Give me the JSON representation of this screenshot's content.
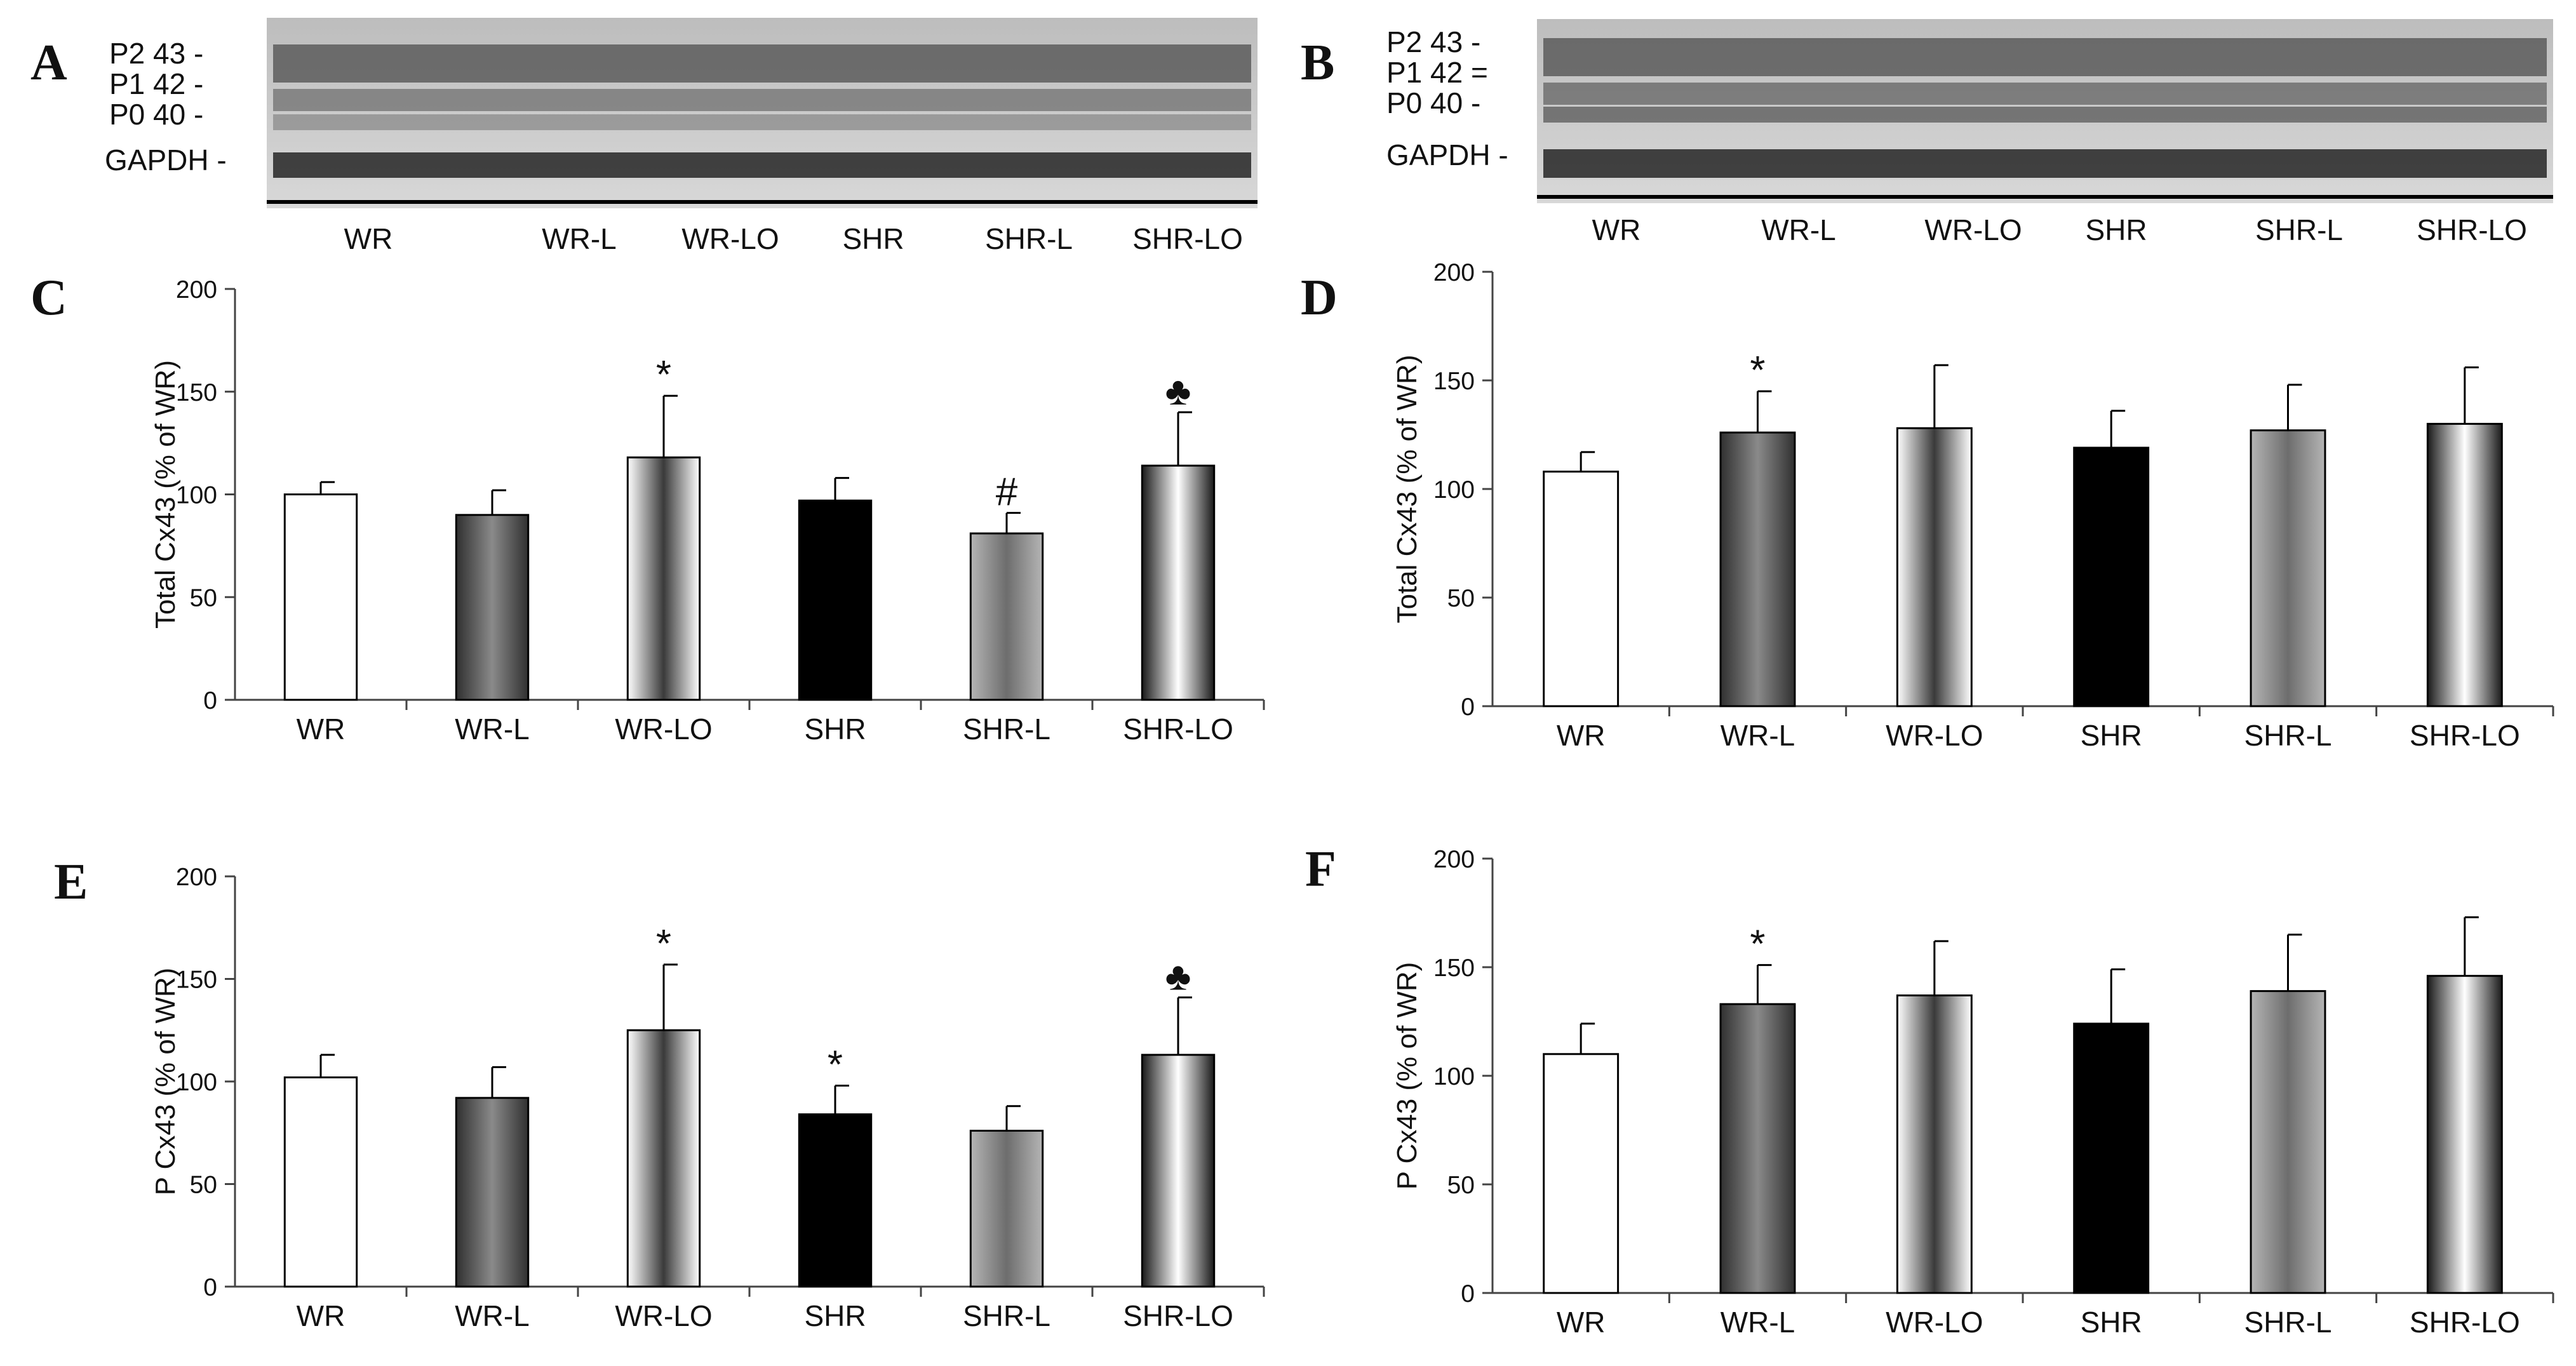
{
  "panels": {
    "A": {
      "label": "A"
    },
    "B": {
      "label": "B"
    }
  },
  "blots": [
    {
      "panel": "A",
      "band_labels": [
        "P2 43 -",
        "P1 42 -",
        "P0 40 -"
      ],
      "loading_label": "GAPDH -",
      "lane_groups": [
        "WR",
        "WR-L",
        "WR-LO",
        "SHR",
        "SHR-L",
        "SHR-LO"
      ]
    },
    {
      "panel": "B",
      "band_labels": [
        "P2 43 -",
        "P1 42 =",
        "P0 40 -"
      ],
      "loading_label": "GAPDH -",
      "lane_groups": [
        "WR",
        "WR-L",
        "WR-LO",
        "SHR",
        "SHR-L",
        "SHR-LO"
      ]
    }
  ],
  "chart_data": [
    {
      "panel": "C",
      "type": "bar",
      "title": "",
      "categories": [
        "WR",
        "WR-L",
        "WR-LO",
        "SHR",
        "SHR-L",
        "SHR-LO"
      ],
      "values": [
        100,
        90,
        118,
        97,
        81,
        114
      ],
      "errors": [
        6,
        12,
        30,
        11,
        10,
        26
      ],
      "annotations": [
        "",
        "",
        "*",
        "",
        "#",
        "♣"
      ],
      "xlabel": "",
      "ylabel": "Total Cx43 (% of WR)",
      "ylim": [
        0,
        200
      ],
      "yticks": [
        0,
        50,
        100,
        150,
        200
      ],
      "grid": false
    },
    {
      "panel": "D",
      "type": "bar",
      "title": "",
      "categories": [
        "WR",
        "WR-L",
        "WR-LO",
        "SHR",
        "SHR-L",
        "SHR-LO"
      ],
      "values": [
        108,
        126,
        128,
        119,
        127,
        130
      ],
      "errors": [
        9,
        19,
        29,
        17,
        21,
        26
      ],
      "annotations": [
        "",
        "*",
        "",
        "",
        "",
        ""
      ],
      "xlabel": "",
      "ylabel": "Total Cx43 (% of WR)",
      "ylim": [
        0,
        200
      ],
      "yticks": [
        0,
        50,
        100,
        150,
        200
      ],
      "grid": false
    },
    {
      "panel": "E",
      "type": "bar",
      "title": "",
      "categories": [
        "WR",
        "WR-L",
        "WR-LO",
        "SHR",
        "SHR-L",
        "SHR-LO"
      ],
      "values": [
        102,
        92,
        125,
        84,
        76,
        113
      ],
      "errors": [
        11,
        15,
        32,
        14,
        12,
        28
      ],
      "annotations": [
        "",
        "",
        "*",
        "*",
        "",
        "♣"
      ],
      "xlabel": "",
      "ylabel": "P Cx43 (% of WR)",
      "ylim": [
        0,
        200
      ],
      "yticks": [
        0,
        50,
        100,
        150,
        200
      ],
      "grid": false
    },
    {
      "panel": "F",
      "type": "bar",
      "title": "",
      "categories": [
        "WR",
        "WR-L",
        "WR-LO",
        "SHR",
        "SHR-L",
        "SHR-LO"
      ],
      "values": [
        110,
        133,
        137,
        124,
        139,
        146
      ],
      "errors": [
        14,
        18,
        25,
        25,
        26,
        27
      ],
      "annotations": [
        "",
        "*",
        "",
        "",
        "",
        ""
      ],
      "xlabel": "",
      "ylabel": "P Cx43 (% of WR)",
      "ylim": [
        0,
        200
      ],
      "yticks": [
        0,
        50,
        100,
        150,
        200
      ],
      "grid": false
    }
  ]
}
